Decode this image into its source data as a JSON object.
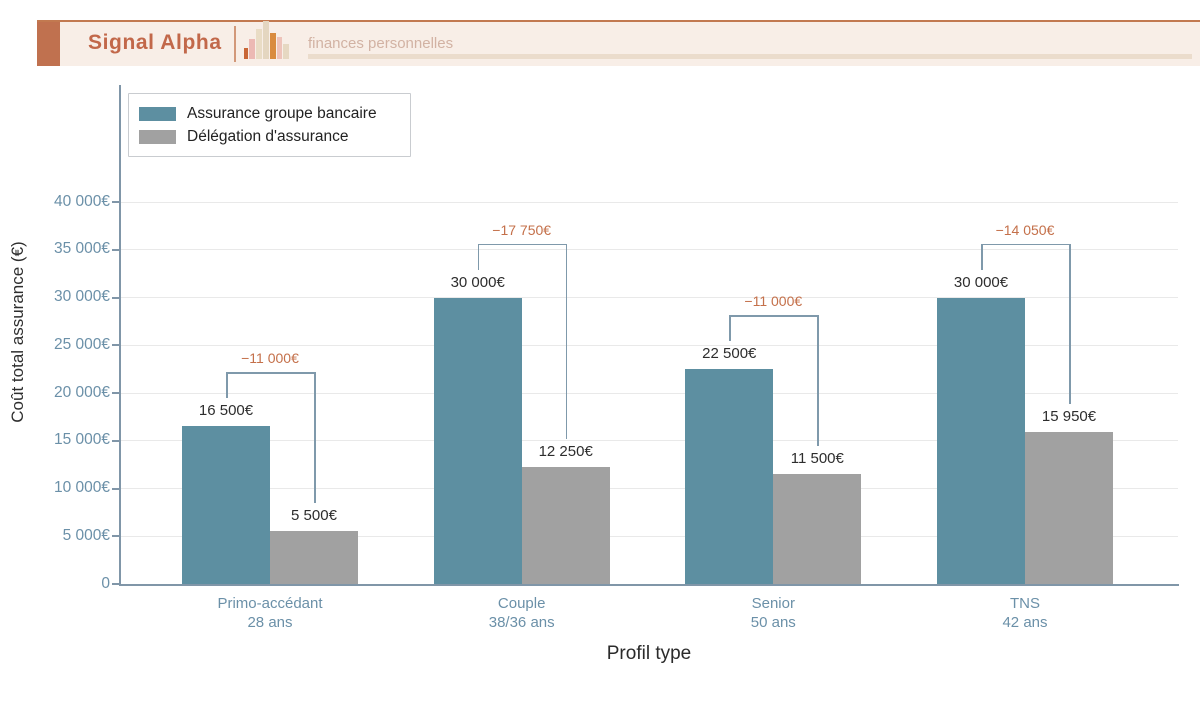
{
  "header": {
    "brand": "Signal Alpha",
    "tagline": "finances personnelles",
    "logo_icon": "bar-chart-icon",
    "colors": {
      "accent": "#c0714f",
      "band_bg": "#f8eee7",
      "brand_text": "#c2684a",
      "tagline_text": "#d2b2a3",
      "underline": "#ebdccc",
      "divider": "#d29879"
    }
  },
  "chart_data": {
    "type": "bar",
    "title": "",
    "xlabel": "Profil type",
    "ylabel": "Coût total assurance (€)",
    "categories": [
      {
        "label": "Primo-accédant",
        "sublabel": "28 ans"
      },
      {
        "label": "Couple",
        "sublabel": "38/36 ans"
      },
      {
        "label": "Senior",
        "sublabel": "50 ans"
      },
      {
        "label": "TNS",
        "sublabel": "42 ans"
      }
    ],
    "series": [
      {
        "name": "Assurance groupe bancaire",
        "color": "#5d8fa1",
        "values": [
          16500,
          30000,
          22500,
          30000
        ],
        "value_labels": [
          "16 500€",
          "30 000€",
          "22 500€",
          "30 000€"
        ]
      },
      {
        "name": "Délégation d'assurance",
        "color": "#a1a1a1",
        "values": [
          5500,
          12250,
          11500,
          15950
        ],
        "value_labels": [
          "5 500€",
          "12 250€",
          "11 500€",
          "15 950€"
        ]
      }
    ],
    "differences": {
      "values": [
        -11000,
        -17750,
        -11000,
        -14050
      ],
      "labels": [
        "−11 000€",
        "−17 750€",
        "−11 000€",
        "−14 050€"
      ],
      "color": "#c4704a"
    },
    "y_axis": {
      "ticks": [
        0,
        5000,
        10000,
        15000,
        20000,
        25000,
        30000,
        35000,
        40000
      ],
      "tick_labels": [
        "0",
        "5 000€",
        "10 000€",
        "15 000€",
        "20 000€",
        "25 000€",
        "30 000€",
        "35 000€",
        "40 000€"
      ],
      "range": [
        0,
        42000
      ]
    },
    "grid": true,
    "legend_position": "upper-left",
    "colors": {
      "axis": "#8096a8",
      "bracket": "#7f99ab",
      "grid": "#e9e9e9",
      "tick_label": "#6b90a8",
      "value_label": "#2d2d2d"
    }
  }
}
